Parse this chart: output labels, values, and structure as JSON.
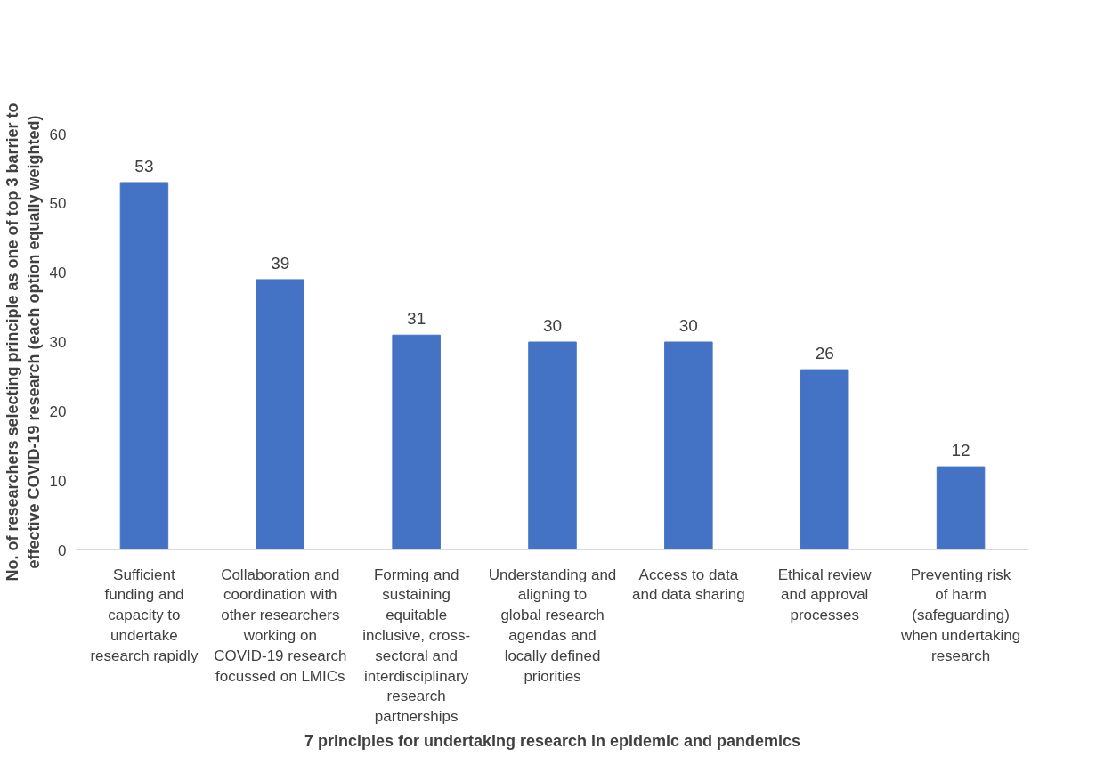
{
  "chart_data": {
    "type": "bar",
    "xlabel": "7 principles for undertaking research in epidemic and pandemics",
    "ylabel": "No. of researchers selecting principle as one of top 3 barrier to effective COVID-19 research (each option equally weighted)",
    "categories": [
      "Sufficient funding and capacity to undertake research rapidly",
      "Collaboration and coordination with other researchers working on COVID-19 research focussed on LMICs",
      "Forming and sustaining equitable inclusive, cross-sectoral and interdisciplinary research partnerships",
      "Understanding and aligning to global research agendas and locally defined priorities",
      "Access to data and data sharing",
      "Ethical review and approval processes",
      "Preventing risk of harm (safeguarding) when undertaking research"
    ],
    "values": [
      53,
      39,
      31,
      30,
      30,
      26,
      12
    ],
    "color": "#4472c4",
    "ylim": [
      0,
      60
    ],
    "yticks": [
      0,
      10,
      20,
      30,
      40,
      50,
      60
    ],
    "data_labels": true,
    "grid": false
  }
}
